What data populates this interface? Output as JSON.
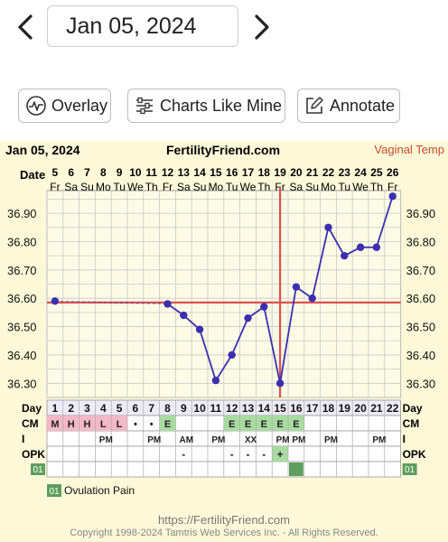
{
  "nav": {
    "date": "Jan 05, 2024"
  },
  "toolbar": {
    "overlay_label": "Overlay",
    "charts_like_mine_label": "Charts Like Mine",
    "annotate_label": "Annotate"
  },
  "chart_header": {
    "date": "Jan 05, 2024",
    "site": "FertilityFriend.com",
    "temp_type": "Vaginal Temp"
  },
  "row_labels": {
    "date": "Date",
    "day": "Day",
    "cm": "CM",
    "i": "I",
    "opk": "OPK",
    "custom": "01"
  },
  "legend": {
    "code": "01",
    "label": "Ovulation Pain"
  },
  "footer": {
    "url": "https://FertilityFriend.com",
    "copyright": "Copyright 1998-2024 Tamtris Web Services Inc. - All Rights Reserved."
  },
  "colors": {
    "grid": "#c9c9c9",
    "line": "#3b2fb0",
    "coverline": "#d9534f",
    "cm_pink": "#f4b8c8",
    "cm_green": "#a8dba0",
    "custom_green": "#5e9e5e"
  },
  "chart_data": {
    "type": "line",
    "dates": [
      "5",
      "6",
      "7",
      "8",
      "9",
      "10",
      "11",
      "12",
      "13",
      "14",
      "15",
      "16",
      "17",
      "18",
      "19",
      "20",
      "21",
      "22",
      "23",
      "24",
      "25",
      "26"
    ],
    "weekdays": [
      "Fr",
      "Sa",
      "Su",
      "Mo",
      "Tu",
      "We",
      "Th",
      "Fr",
      "Sa",
      "Su",
      "Mo",
      "Tu",
      "We",
      "Th",
      "Fr",
      "Sa",
      "Su",
      "Mo",
      "Tu",
      "We",
      "Th",
      "Fr"
    ],
    "cycle_days": [
      "1",
      "2",
      "3",
      "4",
      "5",
      "6",
      "7",
      "8",
      "9",
      "10",
      "11",
      "12",
      "13",
      "14",
      "15",
      "16",
      "17",
      "18",
      "19",
      "20",
      "21",
      "22"
    ],
    "temps": [
      36.59,
      null,
      null,
      null,
      null,
      null,
      null,
      36.58,
      36.54,
      36.49,
      36.31,
      36.4,
      36.53,
      36.57,
      36.3,
      36.64,
      36.6,
      36.85,
      36.75,
      36.78,
      36.78,
      36.96
    ],
    "y_ticks": [
      "36.30",
      "36.40",
      "36.50",
      "36.60",
      "36.70",
      "36.80",
      "36.90"
    ],
    "ylim": [
      36.25,
      36.98
    ],
    "coverline": 36.585,
    "ovulation_day": "15",
    "cm": [
      "M",
      "H",
      "H",
      "L",
      "L",
      "•",
      "•",
      "E",
      "",
      "",
      "",
      "E",
      "E",
      "E",
      "E",
      "E",
      "",
      "",
      "",
      "",
      "",
      ""
    ],
    "cm_class": [
      "pink",
      "pink",
      "pink",
      "pink",
      "pink",
      "",
      "",
      "green",
      "",
      "",
      "",
      "green",
      "green",
      "green",
      "green",
      "green",
      "",
      "",
      "",
      "",
      "",
      ""
    ],
    "intercourse": [
      "",
      "",
      "",
      "PM",
      "",
      "",
      "PM",
      "",
      "AM",
      "",
      "PM",
      "",
      "XX",
      "",
      "PM",
      "PM",
      "",
      "PM",
      "",
      "",
      "PM",
      ""
    ],
    "opk": [
      "",
      "",
      "",
      "",
      "",
      "",
      "",
      "",
      "-",
      "",
      "",
      "-",
      "-",
      "-",
      "+",
      "",
      "",
      "",
      "",
      "",
      "",
      ""
    ],
    "custom_marks": [
      false,
      false,
      false,
      false,
      false,
      false,
      false,
      false,
      false,
      false,
      false,
      false,
      false,
      false,
      false,
      true,
      false,
      false,
      false,
      false,
      false,
      false
    ]
  }
}
